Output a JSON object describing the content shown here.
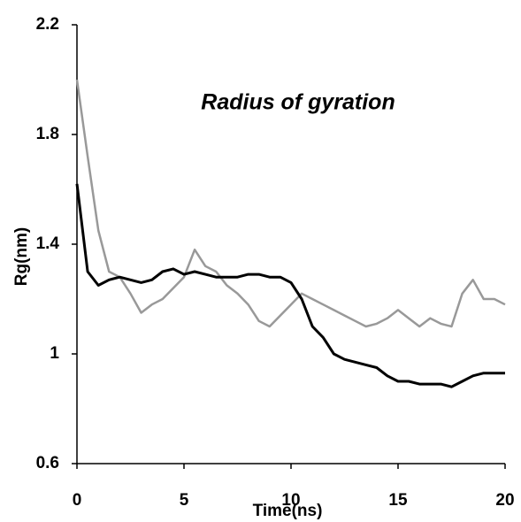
{
  "chart_data": {
    "type": "line",
    "annotation": "Radius of gyration",
    "x_label": "Time(ns)",
    "y_label": "Rg(nm)",
    "x": [
      0,
      0.5,
      1,
      1.5,
      2,
      2.5,
      3,
      3.5,
      4,
      4.5,
      5,
      5.5,
      6,
      6.5,
      7,
      7.5,
      8,
      8.5,
      9,
      9.5,
      10,
      10.5,
      11,
      11.5,
      12,
      12.5,
      13,
      13.5,
      14,
      14.5,
      15,
      15.5,
      16,
      16.5,
      17,
      17.5,
      18,
      18.5,
      19,
      19.5,
      20
    ],
    "series": [
      {
        "color": "#999999",
        "values": [
          2.0,
          1.72,
          1.45,
          1.3,
          1.28,
          1.22,
          1.15,
          1.18,
          1.2,
          1.24,
          1.28,
          1.38,
          1.32,
          1.3,
          1.25,
          1.22,
          1.18,
          1.12,
          1.1,
          1.14,
          1.18,
          1.22,
          1.2,
          1.18,
          1.16,
          1.14,
          1.12,
          1.1,
          1.11,
          1.13,
          1.16,
          1.13,
          1.1,
          1.13,
          1.11,
          1.1,
          1.22,
          1.27,
          1.2,
          1.2,
          1.18
        ]
      },
      {
        "color": "#000000",
        "values": [
          1.62,
          1.3,
          1.25,
          1.27,
          1.28,
          1.27,
          1.26,
          1.27,
          1.3,
          1.31,
          1.29,
          1.3,
          1.29,
          1.28,
          1.28,
          1.28,
          1.29,
          1.29,
          1.28,
          1.28,
          1.26,
          1.2,
          1.1,
          1.06,
          1.0,
          0.98,
          0.97,
          0.96,
          0.95,
          0.92,
          0.9,
          0.9,
          0.89,
          0.89,
          0.89,
          0.88,
          0.9,
          0.92,
          0.93,
          0.93,
          0.93
        ]
      }
    ],
    "xlim": [
      0,
      20
    ],
    "xticks": [
      0,
      5,
      10,
      15,
      20
    ],
    "ylim": [
      0.6,
      2.2
    ],
    "yticks": [
      0.6,
      1,
      1.4,
      1.8,
      2.2
    ]
  }
}
